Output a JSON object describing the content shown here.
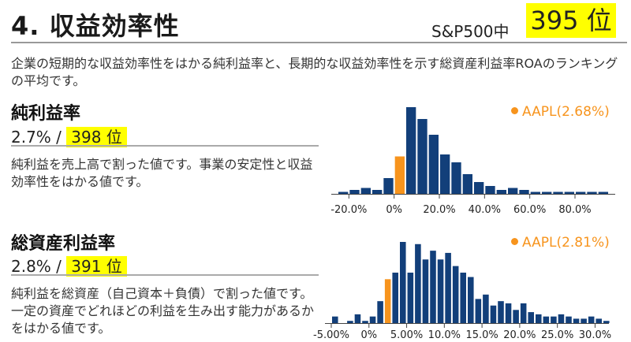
{
  "header": {
    "title": "4. 収益効率性",
    "rank_label": "S&P500中",
    "rank_value": "395 位"
  },
  "intro": "企業の短期的な収益効率性をはかる純利益率と、長期的な収益効率性を示す総資産利益率ROAのランキングの平均です。",
  "colors": {
    "bar": "#123f7a",
    "highlight": "#f7941d",
    "rank_bg": "#ffff00"
  },
  "metrics": [
    {
      "title": "純利益率",
      "value": "2.7%",
      "separator": " / ",
      "rank": "398 位",
      "description": "純利益を売上高で割った値です。事業の安定性と収益効率性をはかる値です。",
      "legend": "AAPL(2.68%)"
    },
    {
      "title": "総資産利益率",
      "value": "2.8%",
      "separator": " / ",
      "rank": "391 位",
      "description": "純利益を総資産（自己資本＋負債）で割った値です。一定の資産でどれほどの利益を生み出す能力があるかをはかる値です。",
      "legend": "AAPL(2.81%)"
    }
  ],
  "chart_data": [
    {
      "type": "bar",
      "x_start": -25,
      "bin_width": 5,
      "values": [
        1,
        2,
        3,
        2,
        8,
        19,
        44,
        38,
        30,
        20,
        16,
        10,
        6,
        4,
        2,
        3,
        2,
        1,
        1,
        1,
        1,
        1,
        1,
        1
      ],
      "highlight_index": 5,
      "xlim": [
        -25,
        95
      ],
      "ticks": [
        -20,
        0,
        20,
        40,
        60,
        80
      ],
      "tick_labels": [
        "-20.0%",
        "0%",
        "20.0%",
        "40.0%",
        "60.0%",
        "80.0%"
      ],
      "ylim": [
        0,
        44
      ],
      "legend": "AAPL(2.68%)",
      "legend_position": "top-right"
    },
    {
      "type": "bar",
      "x_start": -5,
      "bin_width": 1,
      "values": [
        3,
        0,
        1,
        4,
        1,
        3,
        10,
        20,
        23,
        37,
        23,
        36,
        29,
        33,
        29,
        32,
        26,
        23,
        21,
        11,
        13,
        8,
        10,
        9,
        6,
        9,
        5,
        4,
        3,
        3,
        4,
        3,
        2,
        2,
        3,
        2,
        1
      ],
      "highlight_index": 7,
      "xlim": [
        -5,
        31
      ],
      "ticks": [
        -5,
        0,
        5,
        10,
        15,
        20,
        25,
        30
      ],
      "tick_labels": [
        "-5.00%",
        "0%",
        "5.00%",
        "10.0%",
        "15.0%",
        "20.0%",
        "25.0%",
        "30.0%"
      ],
      "ylim": [
        0,
        37
      ],
      "legend": "AAPL(2.81%)",
      "legend_position": "top-right"
    }
  ]
}
